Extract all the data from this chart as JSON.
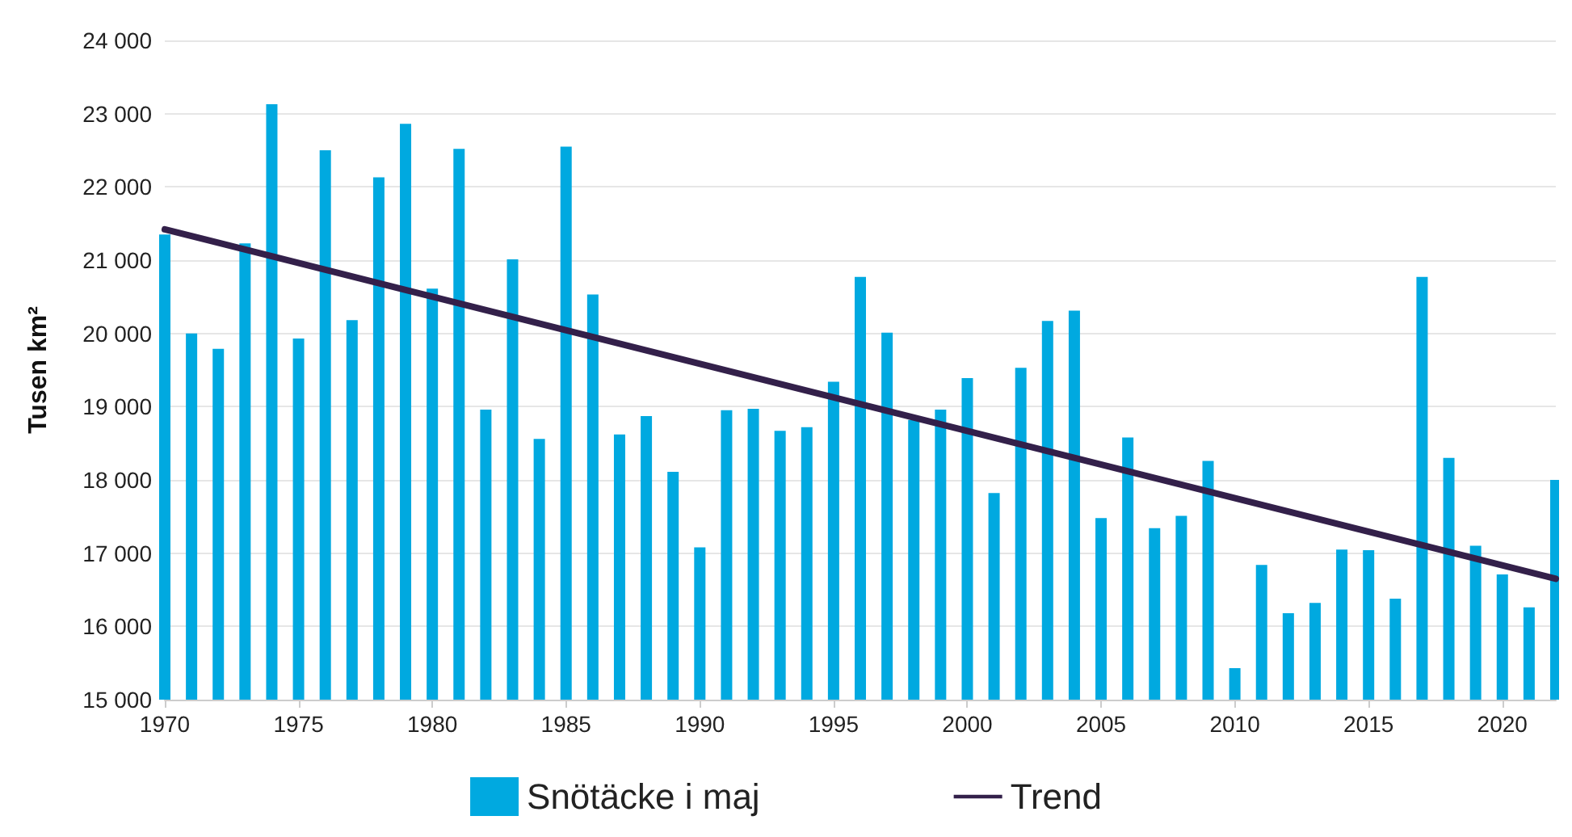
{
  "chart_data": {
    "type": "bar",
    "ylabel": "Tusen km²",
    "legend": "bottom",
    "grid": "y",
    "x": [
      1970,
      1971,
      1972,
      1973,
      1974,
      1975,
      1976,
      1977,
      1978,
      1979,
      1980,
      1981,
      1982,
      1983,
      1984,
      1985,
      1986,
      1987,
      1988,
      1989,
      1990,
      1991,
      1992,
      1993,
      1994,
      1995,
      1996,
      1997,
      1998,
      1999,
      2000,
      2001,
      2002,
      2003,
      2004,
      2005,
      2006,
      2007,
      2008,
      2009,
      2010,
      2011,
      2012,
      2013,
      2014,
      2015,
      2016,
      2017,
      2018,
      2019,
      2020,
      2021,
      2022
    ],
    "series": [
      {
        "name": "Snötäcke i maj",
        "color": "#00a9e0",
        "values": [
          21350,
          20000,
          19790,
          21230,
          23130,
          19930,
          22500,
          20180,
          22130,
          22860,
          20610,
          22520,
          18960,
          21010,
          18560,
          22550,
          20530,
          18620,
          18870,
          18110,
          17080,
          18950,
          18970,
          18670,
          18720,
          19340,
          20770,
          20010,
          18820,
          18960,
          19390,
          17820,
          19530,
          20170,
          20310,
          17480,
          18580,
          17340,
          17510,
          18260,
          15430,
          16840,
          16180,
          16320,
          17050,
          17040,
          16380,
          20770,
          18300,
          17100,
          16710,
          16260,
          18000
        ]
      },
      {
        "name": "Trend",
        "type": "line",
        "color": "#33204a",
        "x": [
          1970,
          2022
        ],
        "values": [
          21420,
          16650
        ]
      }
    ],
    "xlim": [
      1970,
      2022
    ],
    "xticks": [
      1970,
      1975,
      1980,
      1985,
      1990,
      1995,
      2000,
      2005,
      2010,
      2015,
      2020
    ],
    "ylim": [
      15000,
      24000
    ],
    "yticks": [
      {
        "value": 15000,
        "label": "15 000"
      },
      {
        "value": 16000,
        "label": "16 000"
      },
      {
        "value": 17000,
        "label": "17 000"
      },
      {
        "value": 18000,
        "label": "18 000"
      },
      {
        "value": 19000,
        "label": "19 000"
      },
      {
        "value": 20000,
        "label": "20 000"
      },
      {
        "value": 21000,
        "label": "21 000"
      },
      {
        "value": 22000,
        "label": "22 000"
      },
      {
        "value": 23000,
        "label": "23 000"
      },
      {
        "value": 24000,
        "label": "24 000"
      }
    ]
  }
}
